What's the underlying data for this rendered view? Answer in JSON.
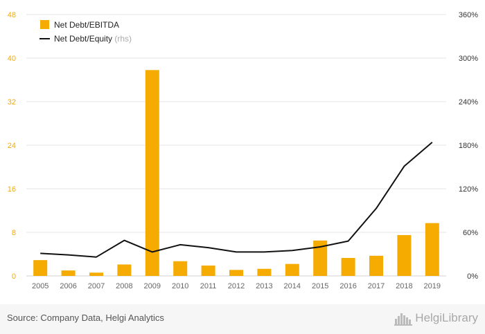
{
  "chart_data": {
    "type": "bar",
    "categories": [
      "2005",
      "2006",
      "2007",
      "2008",
      "2009",
      "2010",
      "2011",
      "2012",
      "2013",
      "2014",
      "2015",
      "2016",
      "2017",
      "2018",
      "2019"
    ],
    "series": [
      {
        "name": "Net Debt/EBITDA",
        "kind": "bar",
        "axis": "left",
        "color": "#f5ab00",
        "values": [
          2.9,
          1.0,
          0.6,
          2.1,
          37.8,
          2.7,
          1.9,
          1.1,
          1.3,
          2.2,
          6.5,
          3.3,
          3.7,
          7.5,
          9.7
        ]
      },
      {
        "name": "Net Debt/Equity",
        "kind": "line",
        "axis": "right",
        "color": "#111111",
        "values": [
          31,
          29,
          26,
          49,
          33,
          43,
          39,
          33,
          33,
          35,
          40,
          48,
          93,
          151,
          184
        ]
      }
    ],
    "legend_suffix": "(rhs)",
    "ylim_left": [
      0,
      48
    ],
    "yticks_left": [
      "0",
      "8",
      "16",
      "24",
      "32",
      "40",
      "48"
    ],
    "ylim_right": [
      0,
      360
    ],
    "yticks_right": [
      "0%",
      "60%",
      "120%",
      "180%",
      "240%",
      "300%",
      "360%"
    ],
    "left_axis_color": "#f5ab00",
    "legend_position": "top-left",
    "grid": true
  },
  "footer": {
    "source": "Source: Company Data, Helgi Analytics",
    "brand": "HelgiLibrary",
    "logo_icon": "skyline-icon"
  }
}
